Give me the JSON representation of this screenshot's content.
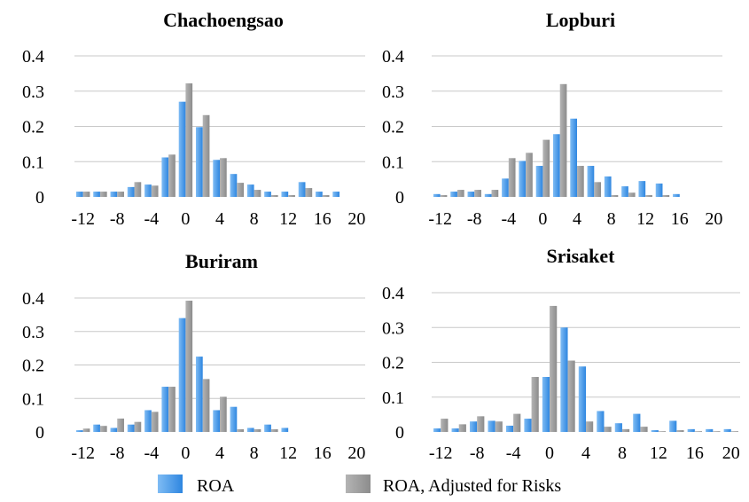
{
  "colors": {
    "roa": "#2e86e0",
    "roa_light": "#7fbcf4",
    "adjusted": "#8c8c8c",
    "adjusted_light": "#b4b4b4",
    "gridline": "#c8c8c8"
  },
  "legend": {
    "items": [
      {
        "label": "ROA",
        "color_key": "roa"
      },
      {
        "label": "ROA, Adjusted for Risks",
        "color_key": "adjusted"
      }
    ]
  },
  "chart_data": [
    {
      "type": "bar",
      "title": "Chachoengsao",
      "xlabel": "",
      "ylabel": "",
      "ylim": [
        0,
        0.4
      ],
      "yticks": [
        "0.4",
        "0.3",
        "0.2",
        "0.1",
        "0"
      ],
      "xtick_labels": [
        "-12",
        "-8",
        "-4",
        "0",
        "4",
        "8",
        "12",
        "16",
        "20"
      ],
      "categories": [
        -12,
        -10,
        -8,
        -6,
        -4,
        -2,
        0,
        2,
        4,
        6,
        8,
        10,
        12,
        14,
        16,
        18,
        20
      ],
      "series": [
        {
          "values": [
            0.015,
            0.015,
            0.015,
            0.028,
            0.035,
            0.112,
            0.27,
            0.198,
            0.105,
            0.065,
            0.035,
            0.015,
            0.015,
            0.042,
            0.015,
            0.015,
            0
          ]
        },
        {
          "values": [
            0.015,
            0.015,
            0.015,
            0.042,
            0.032,
            0.12,
            0.322,
            0.232,
            0.11,
            0.04,
            0.02,
            0.005,
            0.005,
            0.025,
            0.005,
            0,
            0
          ]
        }
      ]
    },
    {
      "type": "bar",
      "title": "Lopburi",
      "xlabel": "",
      "ylabel": "",
      "ylim": [
        0,
        0.4
      ],
      "yticks": [
        "0.4",
        "0.3",
        "0.2",
        "0.1",
        "0"
      ],
      "xtick_labels": [
        "-12",
        "-8",
        "-4",
        "0",
        "4",
        "8",
        "12",
        "16",
        "20"
      ],
      "categories": [
        -12,
        -10,
        -8,
        -6,
        -4,
        -2,
        0,
        2,
        4,
        6,
        8,
        10,
        12,
        14,
        16,
        18,
        20
      ],
      "series": [
        {
          "values": [
            0.008,
            0.015,
            0.015,
            0.008,
            0.052,
            0.102,
            0.088,
            0.178,
            0.222,
            0.088,
            0.058,
            0.03,
            0.045,
            0.038,
            0.008,
            0,
            0
          ]
        },
        {
          "values": [
            0.005,
            0.02,
            0.02,
            0.02,
            0.11,
            0.125,
            0.162,
            0.32,
            0.088,
            0.042,
            0.005,
            0.012,
            0.005,
            0.005,
            0,
            0,
            0
          ]
        }
      ]
    },
    {
      "type": "bar",
      "title": "Buriram",
      "xlabel": "",
      "ylabel": "",
      "ylim": [
        0,
        0.4
      ],
      "yticks": [
        "0.4",
        "0.3",
        "0.2",
        "0.1",
        "0"
      ],
      "xtick_labels": [
        "-12",
        "-8",
        "-4",
        "0",
        "4",
        "8",
        "12",
        "16",
        "20"
      ],
      "categories": [
        -12,
        -10,
        -8,
        -6,
        -4,
        -2,
        0,
        2,
        4,
        6,
        8,
        10,
        12,
        14,
        16,
        18,
        20
      ],
      "series": [
        {
          "values": [
            0.005,
            0.022,
            0.012,
            0.022,
            0.065,
            0.135,
            0.34,
            0.225,
            0.065,
            0.075,
            0.012,
            0.022,
            0.012,
            0,
            0,
            0,
            0
          ]
        },
        {
          "values": [
            0.01,
            0.018,
            0.04,
            0.03,
            0.06,
            0.135,
            0.392,
            0.158,
            0.105,
            0.008,
            0.008,
            0.008,
            0,
            0,
            0,
            0,
            0
          ]
        }
      ]
    },
    {
      "type": "bar",
      "title": "Srisaket",
      "xlabel": "",
      "ylabel": "",
      "ylim": [
        0,
        0.4
      ],
      "yticks": [
        "0.4",
        "0.3",
        "0.2",
        "0.1",
        "0"
      ],
      "xtick_labels": [
        "-12",
        "-8",
        "-4",
        "0",
        "4",
        "8",
        "12",
        "16",
        "20"
      ],
      "categories": [
        -12,
        -10,
        -8,
        -6,
        -4,
        -2,
        0,
        2,
        4,
        6,
        8,
        10,
        12,
        14,
        16,
        18,
        20
      ],
      "series": [
        {
          "values": [
            0.01,
            0.01,
            0.03,
            0.032,
            0.018,
            0.038,
            0.158,
            0.3,
            0.188,
            0.06,
            0.025,
            0.052,
            0.005,
            0.032,
            0.008,
            0.008,
            0.008
          ]
        },
        {
          "values": [
            0.038,
            0.022,
            0.045,
            0.03,
            0.052,
            0.158,
            0.362,
            0.205,
            0.03,
            0.015,
            0.008,
            0.015,
            0.002,
            0.005,
            0.002,
            0.002,
            0.002
          ]
        }
      ]
    }
  ]
}
